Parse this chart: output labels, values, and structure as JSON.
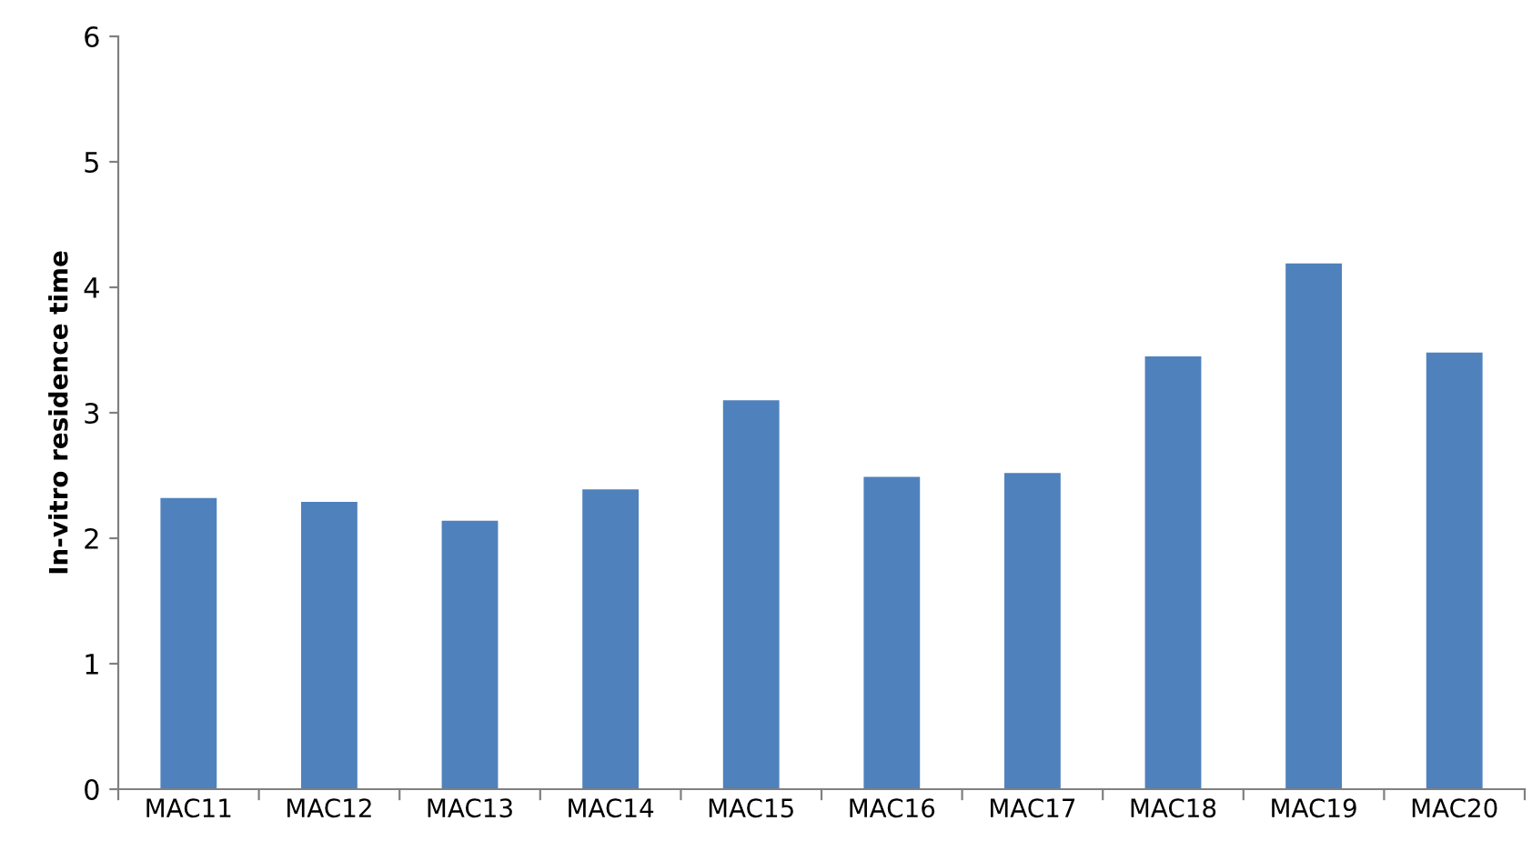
{
  "chart_data": {
    "type": "bar",
    "ylabel": "In-vitro residence time",
    "categories": [
      "MAC11",
      "MAC12",
      "MAC13",
      "MAC14",
      "MAC15",
      "MAC16",
      "MAC17",
      "MAC18",
      "MAC19",
      "MAC20"
    ],
    "values": [
      2.32,
      2.29,
      2.14,
      2.39,
      3.1,
      2.49,
      2.52,
      3.45,
      4.19,
      3.48
    ],
    "color": "#4f81bd",
    "ylim": [
      0,
      6
    ],
    "yticks": [
      0,
      1,
      2,
      3,
      4,
      5,
      6
    ],
    "grid": false
  }
}
